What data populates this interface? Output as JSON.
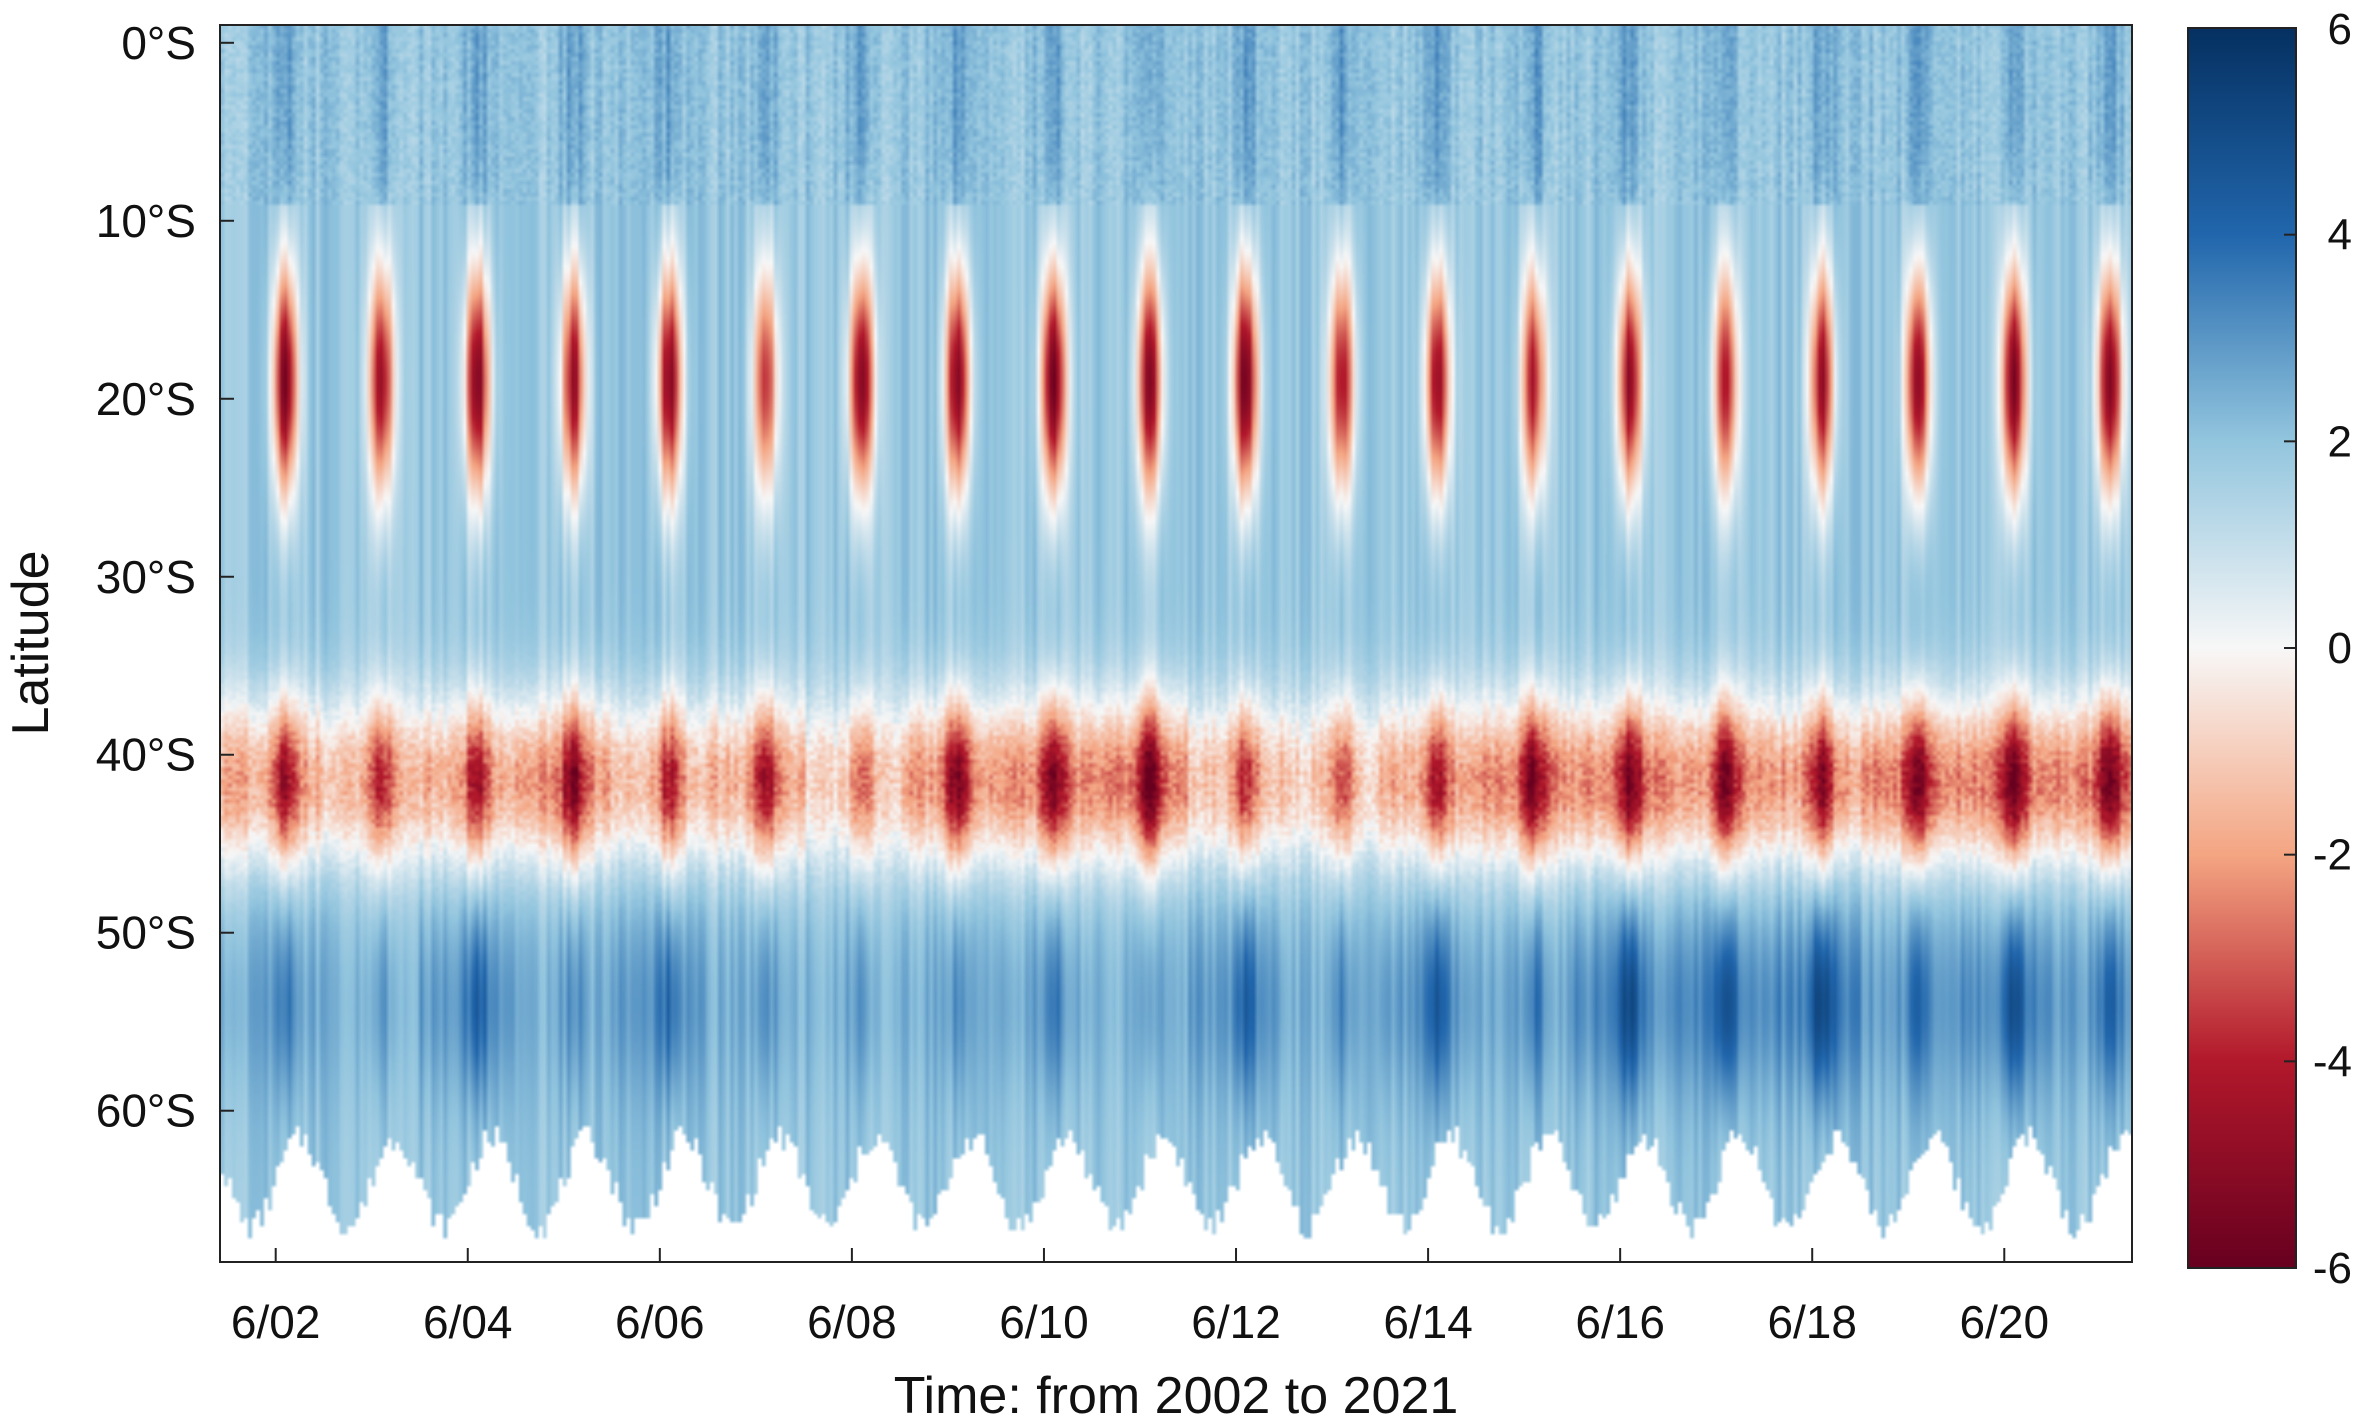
{
  "chart_data": {
    "type": "heatmap",
    "title": "",
    "xlabel": "Time: from 2002 to 2021",
    "ylabel": "Latitude",
    "x_ticks": [
      {
        "x": 2002,
        "label": "6/02"
      },
      {
        "x": 2004,
        "label": "6/04"
      },
      {
        "x": 2006,
        "label": "6/06"
      },
      {
        "x": 2008,
        "label": "6/08"
      },
      {
        "x": 2010,
        "label": "6/10"
      },
      {
        "x": 2012,
        "label": "6/12"
      },
      {
        "x": 2014,
        "label": "6/14"
      },
      {
        "x": 2016,
        "label": "6/16"
      },
      {
        "x": 2018,
        "label": "6/18"
      },
      {
        "x": 2020,
        "label": "6/20"
      }
    ],
    "y_ticks": [
      {
        "y": 0,
        "label": "0°S"
      },
      {
        "y": -10,
        "label": "10°S"
      },
      {
        "y": -20,
        "label": "20°S"
      },
      {
        "y": -30,
        "label": "30°S"
      },
      {
        "y": -40,
        "label": "40°S"
      },
      {
        "y": -50,
        "label": "50°S"
      },
      {
        "y": -60,
        "label": "60°S"
      }
    ],
    "xlim": [
      2001.42,
      2021.33
    ],
    "ylim": [
      -68.5,
      1.0
    ],
    "colorbar": {
      "colormap": "RdBu (blue positive, red negative)",
      "clim": [
        -6,
        6
      ],
      "ticks": [
        {
          "value": 6,
          "label": "6"
        },
        {
          "value": 4,
          "label": "4"
        },
        {
          "value": 2,
          "label": "2"
        },
        {
          "value": 0,
          "label": "0"
        },
        {
          "value": -2,
          "label": "-2"
        },
        {
          "value": -4,
          "label": "-4"
        },
        {
          "value": -6,
          "label": "-6"
        }
      ],
      "stops": [
        {
          "v": -6,
          "color": "#67001f"
        },
        {
          "v": -4,
          "color": "#b2182b"
        },
        {
          "v": -2,
          "color": "#f4a582"
        },
        {
          "v": 0,
          "color": "#f7f7f7"
        },
        {
          "v": 2,
          "color": "#92c5de"
        },
        {
          "v": 4,
          "color": "#2166ac"
        },
        {
          "v": 6,
          "color": "#053061"
        }
      ]
    },
    "pattern": {
      "period_years": 1,
      "background_level": 1.9,
      "northern_band_level": 2.8,
      "subtropical_negative_band": {
        "lat_range": [
          -28,
          -11
        ],
        "peak": -5.5
      },
      "midlatitude_negative_band": {
        "lat_range": [
          -48,
          -33
        ],
        "peak": -6
      },
      "southern_positive_band": {
        "lat_range": [
          -62,
          -48
        ],
        "peak": 4.5
      },
      "no_data_south_of_lat": -64
    },
    "yearly_peaks": [
      {
        "year": 2002,
        "subtropical": -5.5,
        "midlat": -4.8,
        "south": 3.6
      },
      {
        "year": 2003,
        "subtropical": -4.6,
        "midlat": -4.0,
        "south": 3.0
      },
      {
        "year": 2004,
        "subtropical": -5.3,
        "midlat": -4.6,
        "south": 4.3
      },
      {
        "year": 2005,
        "subtropical": -4.6,
        "midlat": -5.5,
        "south": 3.2
      },
      {
        "year": 2006,
        "subtropical": -5.0,
        "midlat": -4.2,
        "south": 4.0
      },
      {
        "year": 2007,
        "subtropical": -3.6,
        "midlat": -4.6,
        "south": 3.2
      },
      {
        "year": 2008,
        "subtropical": -5.3,
        "midlat": -3.0,
        "south": 3.0
      },
      {
        "year": 2009,
        "subtropical": -5.2,
        "midlat": -5.5,
        "south": 3.1
      },
      {
        "year": 2010,
        "subtropical": -5.8,
        "midlat": -5.6,
        "south": 3.6
      },
      {
        "year": 2011,
        "subtropical": -5.0,
        "midlat": -6.0,
        "south": 3.0
      },
      {
        "year": 2012,
        "subtropical": -5.8,
        "midlat": -4.0,
        "south": 4.2
      },
      {
        "year": 2013,
        "subtropical": -4.4,
        "midlat": -3.4,
        "south": 3.2
      },
      {
        "year": 2014,
        "subtropical": -4.8,
        "midlat": -4.6,
        "south": 4.4
      },
      {
        "year": 2015,
        "subtropical": -4.2,
        "midlat": -5.8,
        "south": 3.6
      },
      {
        "year": 2016,
        "subtropical": -5.0,
        "midlat": -5.8,
        "south": 5.0
      },
      {
        "year": 2017,
        "subtropical": -4.0,
        "midlat": -5.6,
        "south": 5.0
      },
      {
        "year": 2018,
        "subtropical": -4.6,
        "midlat": -5.2,
        "south": 5.3
      },
      {
        "year": 2019,
        "subtropical": -5.2,
        "midlat": -6.0,
        "south": 4.0
      },
      {
        "year": 2020,
        "subtropical": -5.4,
        "midlat": -6.0,
        "south": 5.0
      },
      {
        "year": 2021,
        "subtropical": -5.4,
        "midlat": -6.0,
        "south": 4.2
      }
    ]
  }
}
